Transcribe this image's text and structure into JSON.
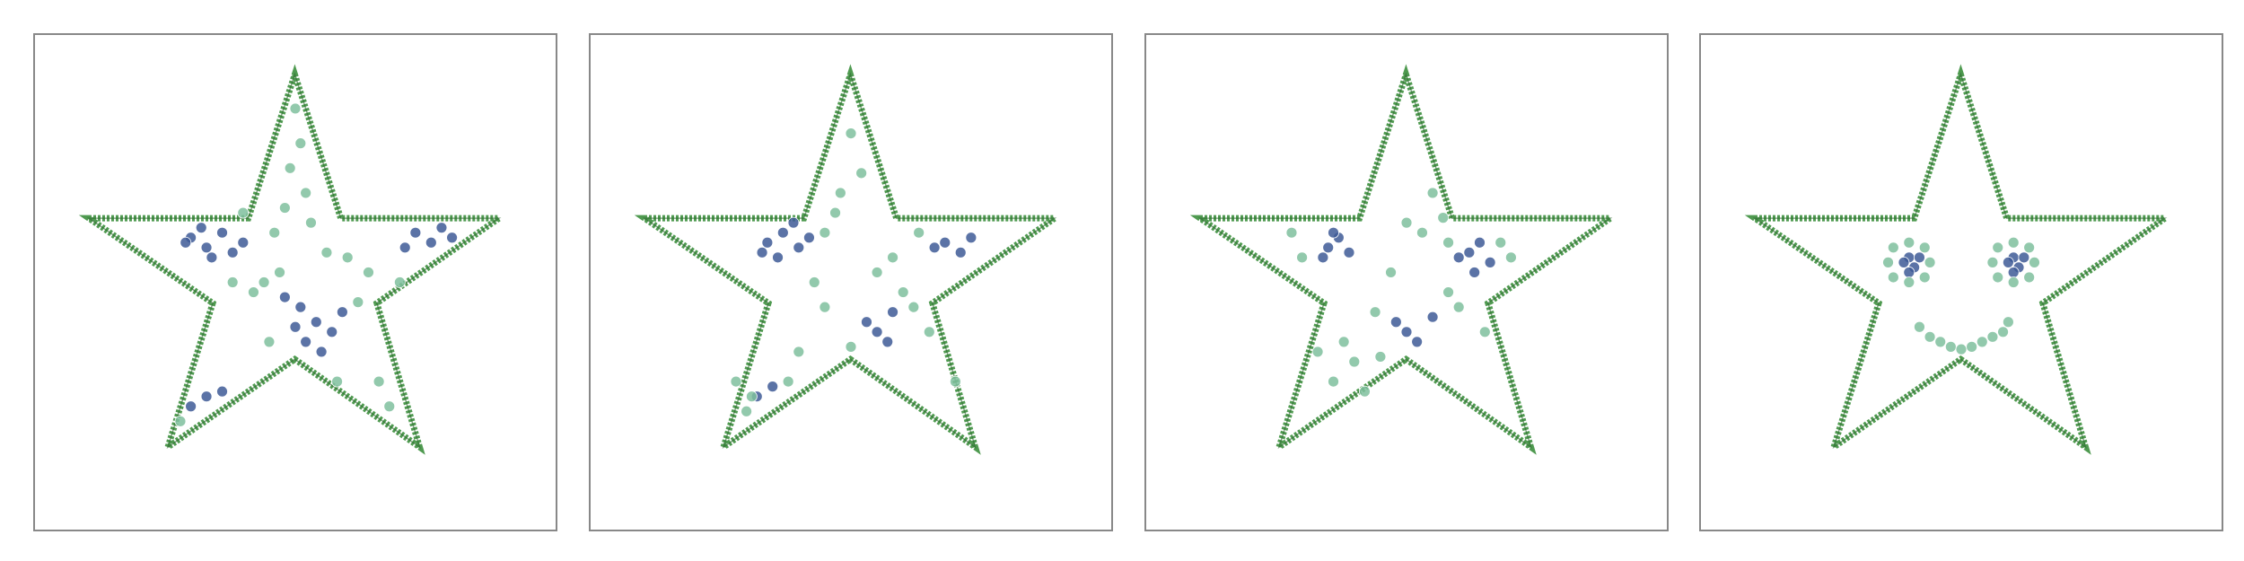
{
  "chart_data": [
    {
      "type": "scatter",
      "xlim": [
        0,
        100
      ],
      "ylim": [
        0,
        100
      ],
      "series": [
        {
          "color": "#3e5a96",
          "x": [
            30,
            33,
            36,
            38,
            34,
            29,
            32,
            40,
            73,
            76,
            78,
            71,
            80,
            54,
            57,
            52,
            59,
            55,
            50,
            33,
            30,
            36,
            48,
            51
          ],
          "values": [
            59,
            57,
            60,
            56,
            55,
            58,
            61,
            58,
            60,
            58,
            61,
            57,
            59,
            42,
            40,
            38,
            44,
            36,
            41,
            27,
            25,
            28,
            47,
            45
          ]
        },
        {
          "color": "#7fbf9e",
          "x": [
            50,
            51,
            49,
            52,
            48,
            53,
            46,
            60,
            64,
            44,
            42,
            62,
            66,
            68,
            38,
            28,
            45,
            58,
            70,
            56,
            47,
            40
          ],
          "values": [
            85,
            78,
            73,
            68,
            65,
            62,
            60,
            55,
            52,
            50,
            48,
            46,
            30,
            25,
            50,
            22,
            38,
            30,
            50,
            56,
            52,
            64
          ]
        }
      ]
    },
    {
      "type": "scatter",
      "xlim": [
        0,
        100
      ],
      "ylim": [
        0,
        100
      ],
      "series": [
        {
          "color": "#3e5a96",
          "x": [
            34,
            37,
            40,
            36,
            33,
            39,
            42,
            68,
            71,
            73,
            66,
            55,
            57,
            53,
            58,
            32,
            35
          ],
          "values": [
            58,
            60,
            57,
            55,
            56,
            62,
            59,
            58,
            56,
            59,
            57,
            40,
            38,
            42,
            44,
            27,
            29
          ]
        },
        {
          "color": "#7fbf9e",
          "x": [
            50,
            52,
            48,
            47,
            45,
            43,
            55,
            60,
            62,
            50,
            40,
            30,
            28,
            38,
            45,
            65,
            70,
            58,
            63,
            31
          ],
          "values": [
            80,
            72,
            68,
            64,
            60,
            50,
            52,
            48,
            45,
            37,
            36,
            24,
            30,
            30,
            45,
            40,
            30,
            55,
            60,
            27
          ]
        }
      ]
    },
    {
      "type": "scatter",
      "xlim": [
        0,
        100
      ],
      "ylim": [
        0,
        100
      ],
      "series": [
        {
          "color": "#3e5a96",
          "x": [
            35,
            37,
            39,
            34,
            36,
            62,
            64,
            66,
            60,
            63,
            50,
            52,
            48,
            55
          ],
          "values": [
            57,
            59,
            56,
            55,
            60,
            56,
            58,
            54,
            55,
            52,
            40,
            38,
            42,
            43
          ]
        },
        {
          "color": "#7fbf9e",
          "x": [
            55,
            57,
            53,
            58,
            50,
            45,
            40,
            38,
            36,
            42,
            60,
            70,
            68,
            30,
            28,
            58,
            47,
            65,
            33,
            44
          ],
          "values": [
            68,
            63,
            60,
            58,
            62,
            35,
            34,
            38,
            30,
            28,
            45,
            55,
            58,
            55,
            60,
            48,
            52,
            40,
            36,
            44
          ]
        }
      ]
    },
    {
      "type": "scatter",
      "xlim": [
        0,
        100
      ],
      "ylim": [
        0,
        100
      ],
      "series": [
        {
          "color": "#3e5a96",
          "x": [
            40,
            41,
            39,
            42,
            40,
            60,
            61,
            59,
            62,
            60
          ],
          "values": [
            55,
            53,
            54,
            55,
            52,
            55,
            53,
            54,
            55,
            52
          ]
        },
        {
          "color": "#7fbf9e",
          "x": [
            36,
            37,
            40,
            43,
            44,
            43,
            40,
            37,
            56,
            57,
            60,
            63,
            64,
            63,
            60,
            57,
            42,
            44,
            46,
            48,
            50,
            52,
            54,
            56,
            58,
            59
          ],
          "values": [
            54,
            57,
            58,
            57,
            54,
            51,
            50,
            51,
            54,
            57,
            58,
            57,
            54,
            51,
            50,
            51,
            41,
            39,
            38,
            37,
            36.5,
            37,
            38,
            39,
            40,
            42
          ]
        }
      ]
    }
  ]
}
